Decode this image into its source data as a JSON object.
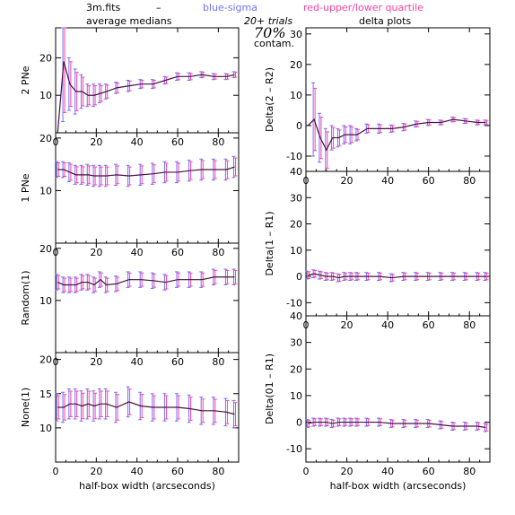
{
  "header": {
    "file": "3m.fits",
    "dash": "–",
    "blue_label": "blue-sigma",
    "red_label": "red-upper/lower quartile",
    "left_title": "average medians",
    "trials": "20+ trials",
    "contam_pct": "70%",
    "contam": "contam.",
    "right_title": "delta plots"
  },
  "colors": {
    "line": "#4a1040",
    "blue": "#7070ff",
    "red": "#ff40a0",
    "axis": "#000000"
  },
  "chart_data": [
    {
      "type": "line",
      "panel": "2PNe",
      "ylabel": "2 PNe",
      "x": [
        1,
        4,
        7,
        10,
        13,
        16,
        19,
        22,
        25,
        30,
        36,
        42,
        48,
        54,
        60,
        66,
        72,
        78,
        84,
        88
      ],
      "values": [
        0,
        19,
        13,
        11,
        11,
        10,
        10,
        10.5,
        11,
        12,
        12.5,
        13,
        13,
        14,
        15,
        15,
        15.5,
        15,
        15,
        15.5
      ],
      "sigma": [
        0,
        16,
        7,
        6,
        4.5,
        3,
        3,
        2.5,
        2,
        1.5,
        1.5,
        1.2,
        1.2,
        1,
        1,
        1,
        0.8,
        0.8,
        0.8,
        0.8
      ],
      "ylim": [
        0,
        28
      ],
      "yticks": [
        10,
        20
      ],
      "xlim": [
        0,
        90
      ],
      "xticks": [
        0,
        20,
        40,
        60,
        80
      ]
    },
    {
      "type": "line",
      "panel": "1PNe",
      "ylabel": "1 PNe",
      "x": [
        1,
        4,
        7,
        10,
        13,
        16,
        19,
        22,
        25,
        30,
        36,
        42,
        48,
        54,
        60,
        66,
        72,
        78,
        84,
        88
      ],
      "values": [
        14,
        14,
        13.5,
        13,
        13,
        13,
        12.8,
        12.8,
        12.8,
        13,
        12.8,
        13,
        13.2,
        13.5,
        13.5,
        13.8,
        14,
        14,
        14,
        14.5
      ],
      "sigma": [
        1.5,
        1.5,
        1.8,
        1.8,
        1.8,
        2,
        2,
        2,
        2,
        2,
        2,
        2,
        2,
        2,
        2,
        2,
        2,
        2,
        2,
        2
      ],
      "ylim": [
        0,
        21
      ],
      "yticks": [
        10,
        20
      ],
      "xlim": [
        0,
        90
      ],
      "xticks": [
        0,
        20,
        40,
        60,
        80
      ]
    },
    {
      "type": "line",
      "panel": "Random",
      "ylabel": "Random(1)",
      "x": [
        1,
        4,
        7,
        10,
        13,
        16,
        19,
        22,
        25,
        30,
        36,
        42,
        48,
        54,
        60,
        66,
        72,
        78,
        84,
        88
      ],
      "values": [
        13.5,
        13,
        13,
        13,
        13.5,
        13.5,
        13,
        14,
        13,
        13.2,
        14,
        14,
        13.8,
        13.5,
        14,
        14,
        14,
        14.5,
        14.5,
        14.5
      ],
      "sigma": [
        1.5,
        1.5,
        1.5,
        1.5,
        1.5,
        1.5,
        1.5,
        1.5,
        1.5,
        1.5,
        1.5,
        1.5,
        1.5,
        1.5,
        1.5,
        1.5,
        1.5,
        1.5,
        1.5,
        1.5
      ],
      "ylim": [
        0,
        21
      ],
      "yticks": [
        10,
        20
      ],
      "xlim": [
        0,
        90
      ],
      "xticks": [
        0,
        20,
        40,
        60,
        80
      ]
    },
    {
      "type": "line",
      "panel": "None",
      "ylabel": "None(1)",
      "x": [
        1,
        4,
        7,
        10,
        13,
        16,
        19,
        22,
        25,
        30,
        36,
        42,
        48,
        54,
        60,
        66,
        72,
        78,
        84,
        88
      ],
      "values": [
        13,
        13,
        13.5,
        13.5,
        13.2,
        13.5,
        13.2,
        13.5,
        13.5,
        13,
        13.8,
        13.2,
        13,
        13,
        13,
        12.8,
        12.5,
        12.5,
        12.3,
        12
      ],
      "sigma": [
        2,
        2.2,
        2.2,
        2.2,
        2.2,
        2.2,
        2.2,
        2.2,
        2.2,
        2.2,
        2.2,
        2,
        2,
        2,
        2,
        2,
        2,
        2,
        2,
        2
      ],
      "ylim": [
        5,
        21
      ],
      "yticks": [
        10,
        15,
        20
      ],
      "xlim": [
        0,
        90
      ],
      "xticks": [
        0,
        20,
        40,
        60,
        80
      ],
      "xlabel": "half-box width (arcseconds)"
    },
    {
      "type": "line",
      "panel": "Delta2",
      "ylabel": "Delta(2 – R2)",
      "x": [
        1,
        4,
        7,
        10,
        13,
        16,
        19,
        22,
        25,
        30,
        36,
        42,
        48,
        54,
        60,
        66,
        72,
        78,
        84,
        88
      ],
      "values": [
        0,
        2,
        -4,
        -8,
        -4,
        -4,
        -3,
        -3,
        -3,
        -1,
        -1,
        -1,
        -0.5,
        0.5,
        1,
        1,
        2,
        1.5,
        1,
        1
      ],
      "sigma": [
        0,
        12,
        8,
        7,
        4,
        3,
        3,
        3,
        2,
        1.5,
        1.5,
        1.2,
        1.2,
        1,
        1,
        0.8,
        0.8,
        0.8,
        0.8,
        0.8
      ],
      "ylim": [
        -15,
        32
      ],
      "yticks": [
        -10,
        0,
        10,
        20,
        30
      ],
      "xlim": [
        0,
        90
      ],
      "xticks": [
        0,
        20,
        40,
        60,
        80
      ]
    },
    {
      "type": "line",
      "panel": "Delta1",
      "ylabel": "Delta(1 – R1)",
      "x": [
        1,
        4,
        7,
        10,
        13,
        16,
        19,
        22,
        25,
        30,
        36,
        42,
        48,
        54,
        60,
        66,
        72,
        78,
        84,
        88
      ],
      "values": [
        0.5,
        1,
        0.5,
        0,
        0,
        -0.5,
        0,
        0,
        0,
        0,
        0,
        -0.5,
        0,
        0,
        0,
        0,
        0,
        0,
        0,
        0
      ],
      "sigma": [
        1.5,
        1.5,
        1.5,
        1.5,
        1.5,
        1.5,
        1.5,
        1.5,
        1.5,
        1.5,
        1.5,
        1.5,
        1.5,
        1.5,
        1.5,
        1.5,
        1.5,
        1.5,
        1.5,
        1.5
      ],
      "ylim": [
        -15,
        40
      ],
      "yticks": [
        -10,
        0,
        10,
        20,
        30,
        40
      ],
      "xlim": [
        0,
        90
      ],
      "xticks": [
        0,
        20,
        40,
        60,
        80
      ]
    },
    {
      "type": "line",
      "panel": "Delta0",
      "ylabel": "Delta(01 – R1)",
      "x": [
        1,
        4,
        7,
        10,
        13,
        16,
        19,
        22,
        25,
        30,
        36,
        42,
        48,
        54,
        60,
        66,
        72,
        78,
        84,
        88
      ],
      "values": [
        -0.5,
        0,
        0,
        0,
        -0.5,
        0,
        0,
        0,
        0,
        0,
        0,
        -0.5,
        -0.5,
        -0.5,
        -0.5,
        -1,
        -1.5,
        -1.5,
        -1.5,
        -2
      ],
      "sigma": [
        1.5,
        1.5,
        1.5,
        1.5,
        1.5,
        1.5,
        1.5,
        1.5,
        1.5,
        1.5,
        1.5,
        1.5,
        1.5,
        1.5,
        1.5,
        1.5,
        1.5,
        1.5,
        1.5,
        1.5
      ],
      "ylim": [
        -15,
        40
      ],
      "yticks": [
        -10,
        0,
        10,
        20,
        30,
        40
      ],
      "xlim": [
        0,
        90
      ],
      "xticks": [
        0,
        20,
        40,
        60,
        80
      ],
      "xlabel": "half-box width (arcseconds)"
    }
  ]
}
